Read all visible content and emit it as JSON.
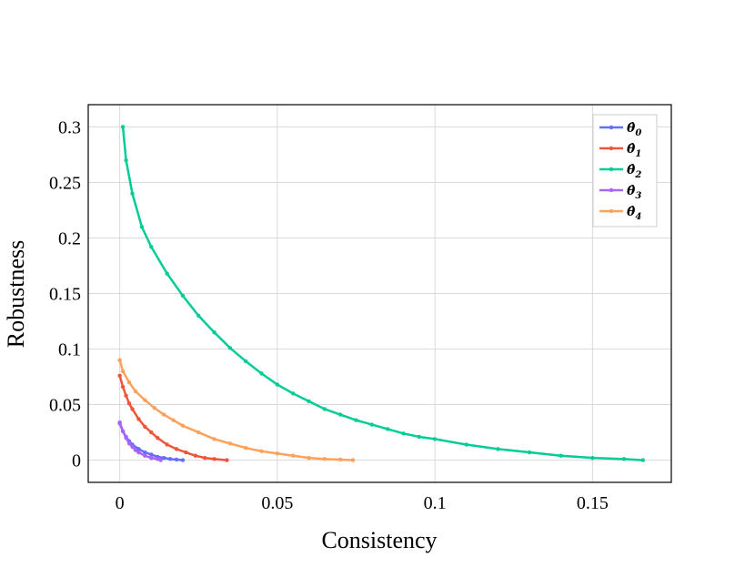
{
  "chart_data": {
    "type": "line",
    "xlabel": "Consistency",
    "ylabel": "Robustness",
    "xlim": [
      -0.01,
      0.175
    ],
    "ylim": [
      -0.02,
      0.32
    ],
    "xticks": [
      0,
      0.05,
      0.1,
      0.15
    ],
    "xtick_labels": [
      "0",
      "0.05",
      "0.1",
      "0.15"
    ],
    "yticks": [
      0,
      0.05,
      0.1,
      0.15,
      0.2,
      0.25,
      0.3
    ],
    "ytick_labels": [
      "0",
      "0.05",
      "0.1",
      "0.15",
      "0.2",
      "0.25",
      "0.3"
    ],
    "grid": true,
    "legend_position": "top-right",
    "series": [
      {
        "name": "θ̂0",
        "sub": "0",
        "color": "#636efa",
        "x": [
          0,
          0.001,
          0.002,
          0.003,
          0.004,
          0.006,
          0.008,
          0.01,
          0.012,
          0.014,
          0.016,
          0.018,
          0.02
        ],
        "y": [
          0.033,
          0.026,
          0.021,
          0.017,
          0.014,
          0.01,
          0.007,
          0.005,
          0.003,
          0.002,
          0.001,
          0.0005,
          0
        ]
      },
      {
        "name": "θ̂1",
        "sub": "1",
        "color": "#ef553b",
        "x": [
          0,
          0.001,
          0.002,
          0.003,
          0.004,
          0.006,
          0.008,
          0.01,
          0.012,
          0.015,
          0.018,
          0.021,
          0.024,
          0.027,
          0.03,
          0.034
        ],
        "y": [
          0.076,
          0.066,
          0.058,
          0.051,
          0.046,
          0.037,
          0.03,
          0.025,
          0.02,
          0.014,
          0.01,
          0.007,
          0.004,
          0.002,
          0.001,
          0
        ]
      },
      {
        "name": "θ̂2",
        "sub": "2",
        "color": "#00cc96",
        "x": [
          0.001,
          0.002,
          0.004,
          0.007,
          0.01,
          0.015,
          0.02,
          0.025,
          0.03,
          0.035,
          0.04,
          0.045,
          0.05,
          0.055,
          0.06,
          0.065,
          0.07,
          0.075,
          0.08,
          0.085,
          0.09,
          0.095,
          0.1,
          0.11,
          0.12,
          0.13,
          0.14,
          0.15,
          0.16,
          0.166
        ],
        "y": [
          0.3,
          0.27,
          0.24,
          0.21,
          0.192,
          0.168,
          0.148,
          0.13,
          0.115,
          0.101,
          0.089,
          0.078,
          0.068,
          0.06,
          0.053,
          0.046,
          0.041,
          0.036,
          0.032,
          0.028,
          0.024,
          0.021,
          0.019,
          0.014,
          0.01,
          0.007,
          0.004,
          0.002,
          0.001,
          0
        ]
      },
      {
        "name": "θ̂3",
        "sub": "3",
        "color": "#ab63fa",
        "x": [
          0,
          0.001,
          0.002,
          0.003,
          0.004,
          0.005,
          0.006,
          0.008,
          0.01,
          0.012,
          0.013
        ],
        "y": [
          0.034,
          0.026,
          0.02,
          0.015,
          0.012,
          0.009,
          0.007,
          0.004,
          0.002,
          0.001,
          0
        ]
      },
      {
        "name": "θ̂4",
        "sub": "4",
        "color": "#ffa15a",
        "x": [
          0,
          0.001,
          0.003,
          0.005,
          0.008,
          0.011,
          0.014,
          0.017,
          0.02,
          0.025,
          0.03,
          0.035,
          0.04,
          0.045,
          0.05,
          0.055,
          0.06,
          0.065,
          0.07,
          0.074
        ],
        "y": [
          0.09,
          0.08,
          0.07,
          0.062,
          0.054,
          0.047,
          0.041,
          0.036,
          0.031,
          0.025,
          0.019,
          0.015,
          0.011,
          0.008,
          0.006,
          0.004,
          0.002,
          0.001,
          0.0005,
          0
        ]
      }
    ]
  }
}
